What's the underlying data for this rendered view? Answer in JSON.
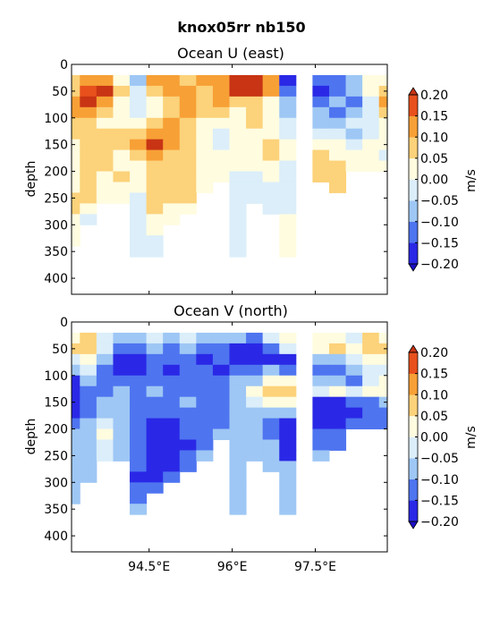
{
  "figure": {
    "suptitle": "knox05rr nb150"
  },
  "colorbar": {
    "levels": [
      -0.2,
      -0.15,
      -0.1,
      -0.05,
      0.0,
      0.05,
      0.1,
      0.15,
      0.2
    ],
    "tick_labels": [
      "−0.20",
      "−0.15",
      "−0.10",
      "−0.05",
      "0.00",
      "0.05",
      "0.10",
      "0.15",
      "0.20"
    ],
    "colors": [
      "#2a28e6",
      "#4e74f0",
      "#9ec7f5",
      "#dbeefa",
      "#fffce0",
      "#fcd27a",
      "#f7a036",
      "#e8501c"
    ],
    "over_color": "#c83414",
    "under_color": "#1c10c4",
    "label": "m/s"
  },
  "chart_data": [
    {
      "type": "heatmap",
      "title": "Ocean U (east)",
      "ylabel": "depth",
      "xlabel": "",
      "x_range_lon": [
        93.1,
        98.8
      ],
      "ylim": [
        430,
        0
      ],
      "y_ticks": [
        0,
        50,
        100,
        150,
        200,
        250,
        300,
        350,
        400
      ],
      "x_ticks": [
        94.5,
        96.0,
        97.5
      ],
      "x_tick_labels": [],
      "depth_levels": [
        30,
        50,
        70,
        90,
        110,
        130,
        150,
        170,
        190,
        210,
        230,
        250,
        270,
        290,
        310,
        330,
        350
      ],
      "longitudes": [
        93.1,
        93.4,
        93.7,
        94.0,
        94.3,
        94.6,
        94.9,
        95.2,
        95.5,
        95.8,
        96.1,
        96.4,
        96.7,
        97.0,
        97.3,
        97.6,
        97.9,
        98.2,
        98.5,
        98.8
      ],
      "max_depth": [
        340,
        290,
        260,
        260,
        360,
        350,
        290,
        280,
        230,
        210,
        350,
        250,
        270,
        350,
        0,
        220,
        230,
        200,
        190,
        190
      ],
      "values": [
        [
          0.1,
          0.15,
          0.12,
          0.05,
          -0.05,
          0.15,
          0.15,
          0.1,
          0.12,
          0.15,
          0.2,
          0.2,
          0.15,
          -0.2,
          null,
          -0.1,
          -0.1,
          -0.05,
          0.05,
          0.05
        ],
        [
          0.1,
          0.18,
          0.2,
          0.1,
          0.0,
          0.1,
          0.15,
          0.15,
          0.1,
          0.15,
          0.2,
          0.2,
          0.15,
          -0.1,
          null,
          -0.15,
          -0.1,
          -0.05,
          0.05,
          0.1
        ],
        [
          0.15,
          0.2,
          0.15,
          0.05,
          0.0,
          0.05,
          0.1,
          0.15,
          0.1,
          0.15,
          0.1,
          0.1,
          0.05,
          -0.05,
          null,
          -0.1,
          -0.05,
          -0.1,
          0.0,
          0.15
        ],
        [
          0.15,
          0.15,
          0.1,
          0.05,
          0.0,
          0.05,
          0.1,
          0.15,
          0.1,
          0.1,
          0.05,
          0.1,
          0.05,
          -0.05,
          null,
          -0.05,
          -0.1,
          -0.05,
          0.0,
          0.1
        ],
        [
          0.1,
          0.1,
          0.05,
          0.05,
          0.05,
          0.1,
          0.12,
          0.1,
          0.05,
          0.05,
          0.05,
          0.1,
          0.05,
          0.0,
          null,
          -0.05,
          -0.05,
          0.0,
          0.0,
          0.05
        ],
        [
          0.1,
          0.1,
          0.1,
          0.1,
          0.1,
          0.15,
          0.15,
          0.1,
          0.05,
          0.0,
          0.05,
          0.05,
          0.05,
          0.0,
          null,
          0.0,
          0.0,
          -0.05,
          0.0,
          0.05
        ],
        [
          0.05,
          0.1,
          0.1,
          0.1,
          0.15,
          0.2,
          0.15,
          0.1,
          0.05,
          0.0,
          0.05,
          0.05,
          0.1,
          0.05,
          null,
          0.05,
          0.05,
          0.0,
          0.05,
          0.05
        ],
        [
          0.05,
          0.1,
          0.1,
          0.05,
          0.1,
          0.15,
          0.1,
          0.1,
          0.05,
          0.05,
          0.05,
          0.05,
          0.1,
          0.05,
          null,
          0.1,
          0.05,
          0.05,
          0.05,
          0.0
        ],
        [
          0.05,
          0.1,
          0.1,
          0.05,
          0.05,
          0.1,
          0.1,
          0.1,
          0.05,
          0.05,
          0.05,
          0.05,
          0.05,
          0.0,
          null,
          0.1,
          0.1,
          0.05,
          0.05,
          0.05
        ],
        [
          0.05,
          0.1,
          0.05,
          0.1,
          0.05,
          0.1,
          0.1,
          0.1,
          0.05,
          0.05,
          0.0,
          0.0,
          0.05,
          0.0,
          null,
          0.1,
          0.1,
          0.05,
          0.0,
          0.0
        ],
        [
          0.05,
          0.1,
          0.05,
          0.05,
          0.05,
          0.1,
          0.1,
          0.1,
          0.05,
          0.05,
          0.0,
          0.0,
          0.0,
          0.0,
          null,
          0.1,
          0.1,
          0.05,
          0.0,
          0.0
        ],
        [
          0.1,
          0.1,
          0.05,
          0.05,
          0.0,
          0.1,
          0.1,
          0.1,
          0.0,
          0.05,
          0.0,
          0.0,
          0.0,
          0.0,
          null,
          0.05,
          0.05,
          0.05,
          0.0,
          0.0
        ],
        [
          0.1,
          0.05,
          0.0,
          0.0,
          0.0,
          0.1,
          0.05,
          0.05,
          0.0,
          0.0,
          0.0,
          0.0,
          0.0,
          0.0,
          null,
          0.05,
          0.05,
          0.0,
          0.0,
          0.0
        ],
        [
          0.05,
          0.0,
          0.0,
          0.0,
          0.0,
          0.05,
          0.05,
          0.0,
          0.0,
          0.0,
          0.0,
          0.0,
          0.0,
          0.05,
          null,
          0.0,
          0.0,
          0.0,
          0.0,
          0.0
        ],
        [
          0.05,
          0.0,
          0.0,
          0.0,
          0.0,
          0.05,
          0.0,
          0.0,
          0.0,
          0.0,
          0.0,
          0.0,
          0.0,
          0.05,
          null,
          0.0,
          0.0,
          0.0,
          0.0,
          0.0
        ],
        [
          0.05,
          0.0,
          0.0,
          0.0,
          0.0,
          0.0,
          0.0,
          0.0,
          0.0,
          0.0,
          0.0,
          0.0,
          0.0,
          0.05,
          null,
          0.0,
          0.0,
          0.0,
          0.0,
          0.0
        ],
        [
          0.0,
          0.0,
          0.0,
          0.0,
          0.0,
          0.0,
          0.0,
          0.0,
          0.0,
          0.0,
          0.0,
          0.0,
          0.0,
          0.05,
          null,
          0.0,
          0.0,
          0.0,
          0.0,
          0.0
        ]
      ]
    },
    {
      "type": "heatmap",
      "title": "Ocean V (north)",
      "ylabel": "depth",
      "xlabel": "",
      "x_range_lon": [
        93.1,
        98.8
      ],
      "ylim": [
        430,
        0
      ],
      "y_ticks": [
        0,
        50,
        100,
        150,
        200,
        250,
        300,
        350,
        400
      ],
      "x_ticks": [
        94.5,
        96.0,
        97.5
      ],
      "x_tick_labels": [
        "94.5°E",
        "96°E",
        "97.5°E"
      ],
      "depth_levels": [
        30,
        50,
        70,
        90,
        110,
        130,
        150,
        170,
        190,
        210,
        230,
        250,
        270,
        290,
        310,
        330,
        350
      ],
      "longitudes": [
        93.1,
        93.4,
        93.7,
        94.0,
        94.3,
        94.6,
        94.9,
        95.2,
        95.5,
        95.8,
        96.1,
        96.4,
        96.7,
        97.0,
        97.3,
        97.6,
        97.9,
        98.2,
        98.5,
        98.8
      ],
      "max_depth": [
        340,
        290,
        260,
        260,
        360,
        320,
        290,
        280,
        250,
        210,
        350,
        250,
        270,
        350,
        0,
        250,
        230,
        200,
        190,
        190
      ],
      "values": [
        [
          0.05,
          0.1,
          0.0,
          -0.05,
          -0.05,
          0.0,
          -0.05,
          0.0,
          -0.05,
          -0.05,
          -0.05,
          -0.1,
          0.0,
          0.05,
          null,
          0.05,
          0.05,
          0.0,
          0.1,
          0.05
        ],
        [
          0.1,
          0.1,
          0.0,
          -0.1,
          -0.1,
          -0.05,
          -0.1,
          -0.05,
          -0.1,
          -0.1,
          -0.15,
          -0.2,
          -0.1,
          0.0,
          null,
          0.05,
          0.1,
          0.05,
          0.1,
          0.1
        ],
        [
          0.0,
          0.05,
          -0.05,
          -0.2,
          -0.15,
          -0.1,
          -0.1,
          -0.1,
          -0.15,
          -0.1,
          -0.15,
          -0.2,
          -0.15,
          -0.2,
          null,
          -0.05,
          -0.05,
          0.0,
          0.05,
          0.05
        ],
        [
          -0.05,
          0.0,
          -0.1,
          -0.2,
          -0.15,
          -0.1,
          -0.15,
          -0.1,
          -0.1,
          -0.15,
          -0.1,
          -0.1,
          -0.05,
          -0.1,
          null,
          -0.1,
          -0.1,
          -0.05,
          0.0,
          0.0
        ],
        [
          -0.15,
          -0.05,
          -0.1,
          -0.1,
          -0.1,
          -0.1,
          -0.1,
          -0.1,
          -0.1,
          -0.1,
          -0.05,
          -0.05,
          0.05,
          0.05,
          null,
          -0.05,
          -0.05,
          -0.1,
          0.0,
          0.05
        ],
        [
          -0.2,
          -0.1,
          -0.1,
          -0.05,
          -0.1,
          -0.05,
          -0.1,
          -0.1,
          -0.1,
          -0.1,
          -0.05,
          0.05,
          0.1,
          0.1,
          null,
          0.0,
          0.05,
          0.0,
          0.05,
          0.05
        ],
        [
          -0.2,
          -0.1,
          -0.05,
          -0.05,
          -0.1,
          -0.1,
          -0.1,
          -0.05,
          -0.1,
          -0.1,
          -0.05,
          0.0,
          0.05,
          0.05,
          null,
          -0.15,
          -0.15,
          -0.1,
          -0.1,
          -0.05
        ],
        [
          -0.15,
          -0.1,
          -0.05,
          -0.05,
          -0.1,
          -0.1,
          -0.1,
          -0.1,
          -0.1,
          -0.1,
          -0.05,
          -0.05,
          -0.05,
          -0.05,
          null,
          -0.15,
          -0.15,
          -0.15,
          -0.1,
          -0.1
        ],
        [
          -0.1,
          -0.05,
          0.0,
          -0.05,
          -0.1,
          -0.15,
          -0.15,
          -0.1,
          -0.1,
          -0.1,
          -0.05,
          -0.05,
          -0.1,
          -0.15,
          null,
          -0.15,
          -0.15,
          -0.1,
          -0.1,
          -0.1
        ],
        [
          -0.05,
          -0.05,
          0.05,
          -0.05,
          -0.1,
          -0.15,
          -0.2,
          -0.1,
          -0.1,
          -0.05,
          -0.05,
          -0.05,
          -0.1,
          -0.2,
          null,
          -0.1,
          -0.1,
          -0.1,
          -0.05,
          -0.05
        ],
        [
          -0.05,
          -0.05,
          0.0,
          -0.05,
          -0.1,
          -0.15,
          -0.2,
          -0.15,
          -0.1,
          -0.05,
          -0.05,
          -0.05,
          -0.05,
          -0.2,
          null,
          -0.1,
          -0.1,
          -0.05,
          -0.05,
          -0.05
        ],
        [
          -0.05,
          -0.05,
          0.0,
          -0.05,
          -0.1,
          -0.2,
          -0.2,
          -0.1,
          -0.05,
          -0.05,
          -0.05,
          -0.05,
          -0.05,
          -0.2,
          null,
          -0.05,
          -0.05,
          -0.05,
          -0.05,
          -0.05
        ],
        [
          -0.05,
          -0.05,
          0.0,
          -0.05,
          -0.1,
          -0.2,
          -0.15,
          -0.1,
          -0.05,
          -0.05,
          -0.05,
          -0.05,
          -0.05,
          -0.05,
          null,
          -0.05,
          -0.05,
          0.0,
          0.0,
          0.0
        ],
        [
          -0.05,
          -0.05,
          0.0,
          -0.05,
          -0.15,
          -0.2,
          -0.1,
          -0.05,
          -0.05,
          -0.05,
          -0.05,
          -0.05,
          -0.05,
          -0.05,
          null,
          0.0,
          0.0,
          0.0,
          0.0,
          0.0
        ],
        [
          -0.05,
          -0.05,
          0.0,
          -0.05,
          -0.1,
          -0.1,
          -0.05,
          -0.05,
          -0.05,
          -0.05,
          -0.05,
          -0.05,
          -0.05,
          -0.05,
          null,
          0.0,
          0.0,
          0.0,
          0.0,
          0.0
        ],
        [
          -0.05,
          0.0,
          0.0,
          -0.05,
          -0.1,
          -0.05,
          -0.05,
          -0.05,
          -0.05,
          -0.05,
          -0.05,
          -0.05,
          -0.05,
          -0.05,
          null,
          0.0,
          0.0,
          0.0,
          0.0,
          0.0
        ],
        [
          -0.05,
          0.0,
          0.0,
          -0.05,
          -0.05,
          -0.05,
          -0.05,
          -0.05,
          -0.05,
          -0.05,
          -0.05,
          -0.05,
          -0.05,
          -0.05,
          null,
          0.0,
          0.0,
          0.0,
          0.0,
          0.0
        ]
      ]
    }
  ]
}
